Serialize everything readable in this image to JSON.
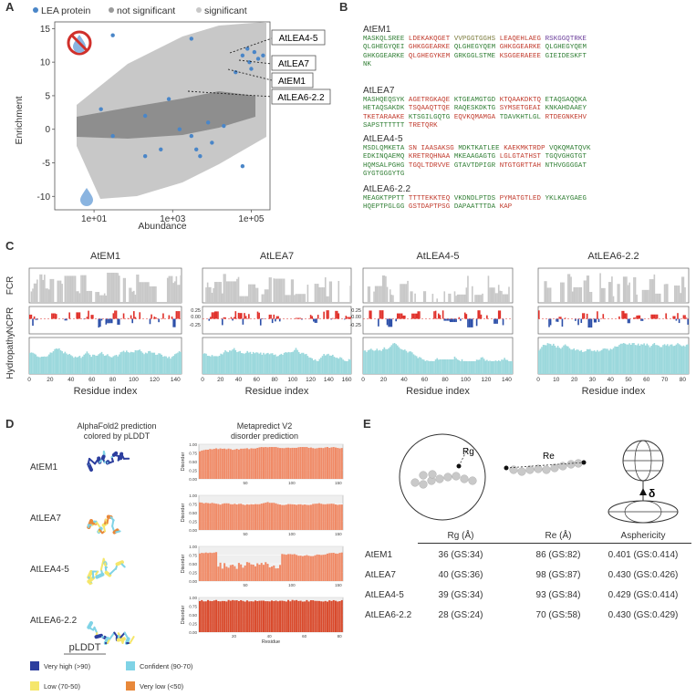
{
  "panels": {
    "A": "A",
    "B": "B",
    "C": "C",
    "D": "D",
    "E": "E"
  },
  "panelA": {
    "legend": [
      {
        "label": "LEA protein",
        "color": "#4a86c8"
      },
      {
        "label": "not significant",
        "color": "#9a9a9a"
      },
      {
        "label": "significant",
        "color": "#c8c8c8"
      }
    ],
    "callouts": [
      "AtLEA4-5",
      "AtLEA7",
      "AtEM1",
      "AtLEA6-2.2"
    ],
    "chart_data": {
      "type": "scatter",
      "xlabel": "Abundance",
      "ylabel": "Enrichment",
      "xscale": "log",
      "xlim": [
        1,
        300000
      ],
      "ylim": [
        -12,
        16
      ],
      "xticks": [
        "1e+01",
        "1e+03",
        "1e+05"
      ],
      "yticks": [
        "15",
        "10",
        "5",
        "0",
        "-5",
        "-10"
      ],
      "series": [
        {
          "name": "LEA protein",
          "points": [
            [
              30,
              14
            ],
            [
              3000,
              13.5
            ],
            [
              80000,
              12
            ],
            [
              120000,
              11.5
            ],
            [
              60000,
              11
            ],
            [
              150000,
              10.5
            ],
            [
              100000,
              9
            ],
            [
              200000,
              11
            ],
            [
              40000,
              8.5
            ],
            [
              90000,
              10
            ],
            [
              15,
              3
            ],
            [
              200,
              2
            ],
            [
              800,
              4.5
            ],
            [
              3000,
              -1
            ],
            [
              10000,
              -2
            ],
            [
              30,
              -1
            ],
            [
              500,
              -3
            ],
            [
              5000,
              -4
            ],
            [
              20000,
              0.5
            ],
            [
              60000,
              -5.5
            ],
            [
              200,
              -4
            ],
            [
              8000,
              1
            ],
            [
              1500,
              0
            ],
            [
              4000,
              -3
            ]
          ]
        }
      ],
      "callout_points": [
        [
          70000,
          11.5
        ],
        [
          90000,
          10.5
        ],
        [
          60000,
          9.5
        ],
        [
          10000,
          5
        ]
      ]
    }
  },
  "panelB": {
    "sequences": [
      {
        "name": "AtEM1",
        "lines": [
          [
            [
              "MASKQLSREE",
              "#2e7d32"
            ],
            [
              " ",
              ""
            ],
            [
              "LDEKAKQGET",
              "#c0392b"
            ],
            [
              " ",
              ""
            ],
            [
              "VVPGGTGGHS",
              "#7b7b3b"
            ],
            [
              " ",
              ""
            ],
            [
              "LEAQEHLAEG",
              "#c0392b"
            ],
            [
              " ",
              ""
            ],
            [
              "RSKGGQTRKE",
              "#6a3d9a"
            ]
          ],
          [
            [
              "QLGHEGYQEI",
              "#2e7d32"
            ],
            [
              " ",
              ""
            ],
            [
              "GHKGGEARKE",
              "#c0392b"
            ],
            [
              " ",
              ""
            ],
            [
              "QLGHEGYQEM",
              "#2e7d32"
            ],
            [
              " ",
              ""
            ],
            [
              "GHKGGEARKE",
              "#c0392b"
            ],
            [
              " ",
              ""
            ],
            [
              "QLGHEGYQEM",
              "#2e7d32"
            ]
          ],
          [
            [
              "GHKGGEARKE",
              "#2e7d32"
            ],
            [
              " ",
              ""
            ],
            [
              "QLGHEGYKEM",
              "#c0392b"
            ],
            [
              " ",
              ""
            ],
            [
              "GRKGGLSTME",
              "#2e7d32"
            ],
            [
              " ",
              ""
            ],
            [
              "KSGGERAEEE",
              "#c0392b"
            ],
            [
              " ",
              ""
            ],
            [
              "GIEIDESKFT",
              "#2e7d32"
            ]
          ],
          [
            [
              "NK",
              "#2e7d32"
            ]
          ]
        ]
      },
      {
        "name": "AtLEA7",
        "lines": [
          [
            [
              "MASHQEQSYK",
              "#2e7d32"
            ],
            [
              " ",
              ""
            ],
            [
              "AGETRGKAQE",
              "#c0392b"
            ],
            [
              " ",
              ""
            ],
            [
              "KTGEAMGTGD",
              "#2e7d32"
            ],
            [
              " ",
              ""
            ],
            [
              "KTQAAKDKTQ",
              "#c0392b"
            ],
            [
              " ",
              ""
            ],
            [
              "ETAQSAQQKA",
              "#2e7d32"
            ]
          ],
          [
            [
              "HETAQSAKDK",
              "#2e7d32"
            ],
            [
              " ",
              ""
            ],
            [
              "TSQAAQTTQE",
              "#c0392b"
            ],
            [
              " ",
              ""
            ],
            [
              "RAQESKDKTG",
              "#2e7d32"
            ],
            [
              " ",
              ""
            ],
            [
              "SYMSETGEAI",
              "#c0392b"
            ],
            [
              " ",
              ""
            ],
            [
              "KNKAHDAAEY",
              "#2e7d32"
            ]
          ],
          [
            [
              "TKETARAAKE",
              "#c0392b"
            ],
            [
              " ",
              ""
            ],
            [
              "KTSGILGQTG",
              "#2e7d32"
            ],
            [
              " ",
              ""
            ],
            [
              "EQVKQMAMGA",
              "#c0392b"
            ],
            [
              " ",
              ""
            ],
            [
              "TDAVKHTLGL",
              "#2e7d32"
            ],
            [
              " ",
              ""
            ],
            [
              "RTDEGNKEHV",
              "#c0392b"
            ]
          ],
          [
            [
              "SAPSTTTTTT",
              "#2e7d32"
            ],
            [
              " ",
              ""
            ],
            [
              "TRETQRK",
              "#c0392b"
            ]
          ]
        ]
      },
      {
        "name": "AtLEA4-5",
        "lines": [
          [
            [
              "MSDLQMKETA",
              "#2e7d32"
            ],
            [
              " ",
              ""
            ],
            [
              "SN IAASAKSG",
              "#c0392b"
            ],
            [
              " ",
              ""
            ],
            [
              "MDKTKATLEE",
              "#2e7d32"
            ],
            [
              " ",
              ""
            ],
            [
              "KAEKMKTRDP",
              "#c0392b"
            ],
            [
              " ",
              ""
            ],
            [
              "VQKQMATQVK",
              "#2e7d32"
            ]
          ],
          [
            [
              "EDKINQAEMQ",
              "#2e7d32"
            ],
            [
              " ",
              ""
            ],
            [
              "KRETRQHNAA",
              "#c0392b"
            ],
            [
              " ",
              ""
            ],
            [
              "MKEAAGAGTG",
              "#2e7d32"
            ],
            [
              " ",
              ""
            ],
            [
              "LGLGTATHST",
              "#c0392b"
            ],
            [
              " ",
              ""
            ],
            [
              "TGQVGHGTGT",
              "#2e7d32"
            ]
          ],
          [
            [
              "HQMSALPGHG",
              "#2e7d32"
            ],
            [
              " ",
              ""
            ],
            [
              "TGQLTDRVVE",
              "#c0392b"
            ],
            [
              " ",
              ""
            ],
            [
              "GTAVTDPIGR",
              "#2e7d32"
            ],
            [
              " ",
              ""
            ],
            [
              "NTGTGRTTAH",
              "#c0392b"
            ],
            [
              " ",
              ""
            ],
            [
              "NTHVGGGGAT",
              "#2e7d32"
            ]
          ],
          [
            [
              "GYGTGGGYTG",
              "#2e7d32"
            ]
          ]
        ]
      },
      {
        "name": "AtLEA6-2.2",
        "lines": [
          [
            [
              "MEAGKTPPTT",
              "#2e7d32"
            ],
            [
              " ",
              ""
            ],
            [
              "TTTTEKKTEQ",
              "#c0392b"
            ],
            [
              " ",
              ""
            ],
            [
              "VKDNDLPTDS",
              "#2e7d32"
            ],
            [
              " ",
              ""
            ],
            [
              "PYMATGTLED",
              "#c0392b"
            ],
            [
              " ",
              ""
            ],
            [
              "YKLKAYGAEG",
              "#2e7d32"
            ]
          ],
          [
            [
              "HQEPTPGLGG",
              "#2e7d32"
            ],
            [
              " ",
              ""
            ],
            [
              "GSTDAPTPSG",
              "#c0392b"
            ],
            [
              " ",
              ""
            ],
            [
              "DAPAATTTDA",
              "#2e7d32"
            ],
            [
              " ",
              ""
            ],
            [
              "KAP",
              "#c0392b"
            ]
          ]
        ]
      }
    ]
  },
  "panelC": {
    "proteins": [
      "AtEM1",
      "AtLEA7",
      "AtLEA4-5",
      "AtLEA6-2.2"
    ],
    "row_labels": [
      "FCR",
      "NCPR",
      "Hydropathy"
    ],
    "xlabel": "Residue index",
    "xticks": [
      [
        "0",
        "20",
        "40",
        "60",
        "80",
        "100",
        "120",
        "140"
      ],
      [
        "0",
        "20",
        "40",
        "60",
        "80",
        "100",
        "120",
        "140",
        "160"
      ],
      [
        "0",
        "20",
        "40",
        "60",
        "80",
        "100",
        "120",
        "140"
      ],
      [
        "0",
        "10",
        "20",
        "30",
        "40",
        "50",
        "60",
        "70",
        "80"
      ]
    ],
    "chart_data": {
      "type": "bar",
      "series": [
        {
          "name": "FCR"
        },
        {
          "name": "NCPR"
        },
        {
          "name": "Hydropathy"
        }
      ]
    }
  },
  "panelD": {
    "title_left": "AlphaFold2 prediction colored by pLDDT",
    "title_left_1": "AlphaFold2 prediction",
    "title_left_2": "colored by pLDDT",
    "title_right_1": "Metapredict V2",
    "title_right_2": "disorder prediction",
    "proteins": [
      "AtEM1",
      "AtLEA7",
      "AtLEA4-5",
      "AtLEA6-2.2"
    ],
    "ylabel": "Disorder",
    "xlabel": "Residue",
    "yticks": [
      "1.00",
      "0.75",
      "0.50",
      "0.25",
      "0.00"
    ],
    "xticks": [
      [
        "50",
        "100",
        "150"
      ],
      [
        "50",
        "100",
        "150"
      ],
      [
        "50",
        "100",
        "150"
      ],
      [
        "20",
        "40",
        "60",
        "80"
      ]
    ],
    "legend_title": "pLDDT",
    "legend": [
      {
        "label": "Very high (>90)",
        "color": "#2c3e9e"
      },
      {
        "label": "Confident (90-70)",
        "color": "#7fd3e6"
      },
      {
        "label": "Low (70-50)",
        "color": "#f5e66b"
      },
      {
        "label": "Very low (<50)",
        "color": "#e8883a"
      }
    ]
  },
  "panelE": {
    "diagram_labels": {
      "rg": "Rg",
      "re": "Re",
      "delta": "δ"
    },
    "headers": [
      "Rg (Å)",
      "Re (Å)",
      "Asphericity"
    ],
    "rows": [
      {
        "name": "AtEM1",
        "rg": "36 (GS:34)",
        "re": "86 (GS:82)",
        "asph": "0.401 (GS:0.414)"
      },
      {
        "name": "AtLEA7",
        "rg": "40 (GS:36)",
        "re": "98 (GS:87)",
        "asph": "0.430 (GS:0.426)"
      },
      {
        "name": "AtLEA4-5",
        "rg": "39 (GS:34)",
        "re": "93 (GS:84)",
        "asph": "0.429 (GS:0.414)"
      },
      {
        "name": "AtLEA6-2.2",
        "rg": "28 (GS:24)",
        "re": "70 (GS:58)",
        "asph": "0.430 (GS:0.429)"
      }
    ]
  }
}
